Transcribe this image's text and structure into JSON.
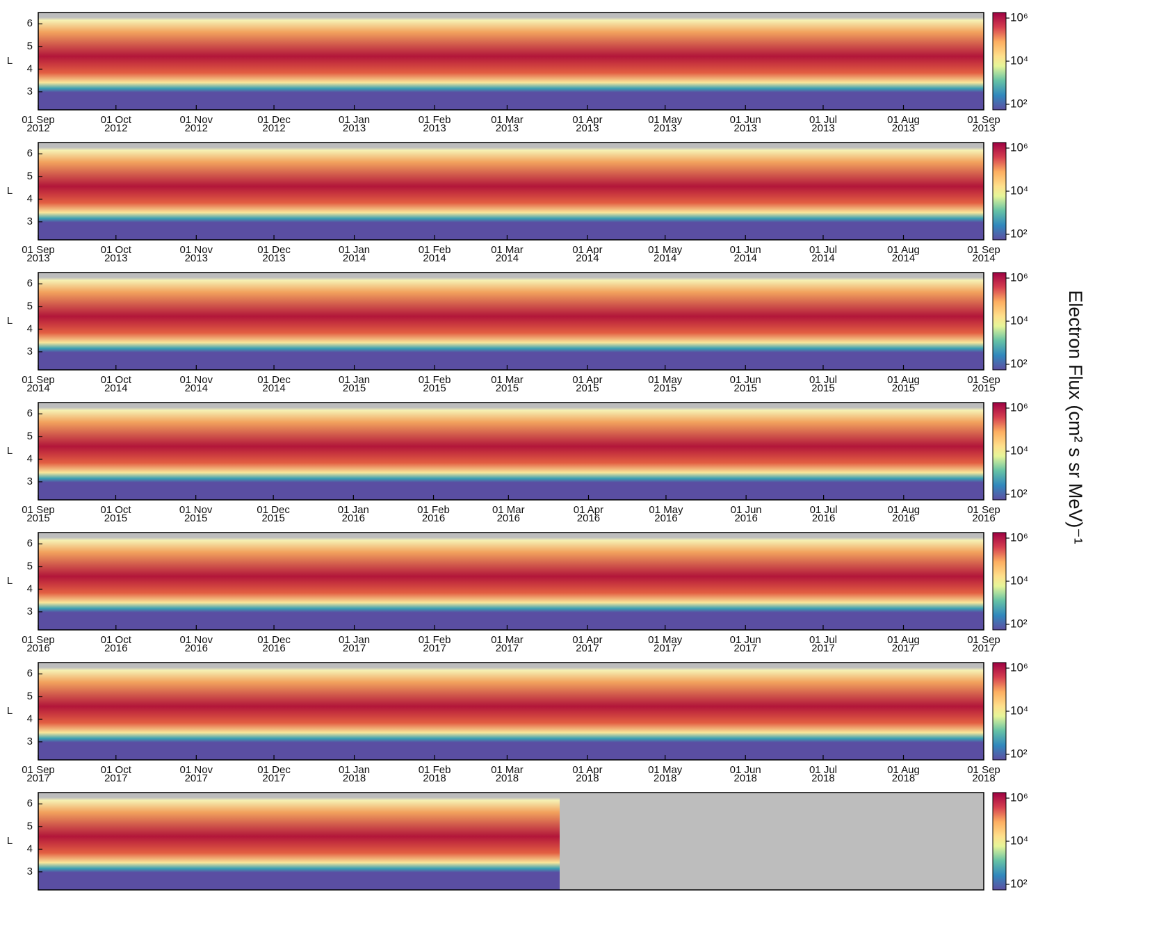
{
  "figure": {
    "colorbar_label": "Electron Flux (cm² s sr MeV)⁻¹"
  },
  "chart_data": [
    {
      "type": "heatmap",
      "ylabel": "L",
      "ylim": [
        2.2,
        6.5
      ],
      "yticks": [
        3,
        4,
        5,
        6
      ],
      "clim": [
        100,
        1000000
      ],
      "colorbar_log": true,
      "colorbar_ticks": [
        {
          "value": 100,
          "label": "10²"
        },
        {
          "value": 10000,
          "label": "10⁴"
        },
        {
          "value": 1000000,
          "label": "10⁶"
        }
      ],
      "xlim": [
        "2012-09-01",
        "2013-09-01"
      ],
      "xticks": [
        {
          "value": "2012-09-01",
          "label": [
            "01 Sep",
            "2012"
          ]
        },
        {
          "value": "2012-10-01",
          "label": [
            "01 Oct",
            "2012"
          ]
        },
        {
          "value": "2012-11-01",
          "label": [
            "01 Nov",
            "2012"
          ]
        },
        {
          "value": "2012-12-01",
          "label": [
            "01 Dec",
            "2012"
          ]
        },
        {
          "value": "2013-01-01",
          "label": [
            "01 Jan",
            "2013"
          ]
        },
        {
          "value": "2013-02-01",
          "label": [
            "01 Feb",
            "2013"
          ]
        },
        {
          "value": "2013-03-01",
          "label": [
            "01 Mar",
            "2013"
          ]
        },
        {
          "value": "2013-04-01",
          "label": [
            "01 Apr",
            "2013"
          ]
        },
        {
          "value": "2013-05-01",
          "label": [
            "01 May",
            "2013"
          ]
        },
        {
          "value": "2013-06-01",
          "label": [
            "01 Jun",
            "2013"
          ]
        },
        {
          "value": "2013-07-01",
          "label": [
            "01 Jul",
            "2013"
          ]
        },
        {
          "value": "2013-08-01",
          "label": [
            "01 Aug",
            "2013"
          ]
        },
        {
          "value": "2013-09-01",
          "label": [
            "01 Sep",
            "2013"
          ]
        }
      ]
    },
    {
      "type": "heatmap",
      "ylabel": "L",
      "ylim": [
        2.2,
        6.5
      ],
      "yticks": [
        3,
        4,
        5,
        6
      ],
      "clim": [
        100,
        1000000
      ],
      "colorbar_log": true,
      "colorbar_ticks": [
        {
          "value": 100,
          "label": "10²"
        },
        {
          "value": 10000,
          "label": "10⁴"
        },
        {
          "value": 1000000,
          "label": "10⁶"
        }
      ],
      "xlim": [
        "2013-09-01",
        "2014-09-01"
      ],
      "xticks": [
        {
          "value": "2013-09-01",
          "label": [
            "01 Sep",
            "2013"
          ]
        },
        {
          "value": "2013-10-01",
          "label": [
            "01 Oct",
            "2013"
          ]
        },
        {
          "value": "2013-11-01",
          "label": [
            "01 Nov",
            "2013"
          ]
        },
        {
          "value": "2013-12-01",
          "label": [
            "01 Dec",
            "2013"
          ]
        },
        {
          "value": "2014-01-01",
          "label": [
            "01 Jan",
            "2014"
          ]
        },
        {
          "value": "2014-02-01",
          "label": [
            "01 Feb",
            "2014"
          ]
        },
        {
          "value": "2014-03-01",
          "label": [
            "01 Mar",
            "2014"
          ]
        },
        {
          "value": "2014-04-01",
          "label": [
            "01 Apr",
            "2014"
          ]
        },
        {
          "value": "2014-05-01",
          "label": [
            "01 May",
            "2014"
          ]
        },
        {
          "value": "2014-06-01",
          "label": [
            "01 Jun",
            "2014"
          ]
        },
        {
          "value": "2014-07-01",
          "label": [
            "01 Jul",
            "2014"
          ]
        },
        {
          "value": "2014-08-01",
          "label": [
            "01 Aug",
            "2014"
          ]
        },
        {
          "value": "2014-09-01",
          "label": [
            "01 Sep",
            "2014"
          ]
        }
      ]
    },
    {
      "type": "heatmap",
      "ylabel": "L",
      "ylim": [
        2.2,
        6.5
      ],
      "yticks": [
        3,
        4,
        5,
        6
      ],
      "clim": [
        100,
        1000000
      ],
      "colorbar_log": true,
      "colorbar_ticks": [
        {
          "value": 100,
          "label": "10²"
        },
        {
          "value": 10000,
          "label": "10⁴"
        },
        {
          "value": 1000000,
          "label": "10⁶"
        }
      ],
      "xlim": [
        "2014-09-01",
        "2015-09-01"
      ],
      "xticks": [
        {
          "value": "2014-09-01",
          "label": [
            "01 Sep",
            "2014"
          ]
        },
        {
          "value": "2014-10-01",
          "label": [
            "01 Oct",
            "2014"
          ]
        },
        {
          "value": "2014-11-01",
          "label": [
            "01 Nov",
            "2014"
          ]
        },
        {
          "value": "2014-12-01",
          "label": [
            "01 Dec",
            "2014"
          ]
        },
        {
          "value": "2015-01-01",
          "label": [
            "01 Jan",
            "2015"
          ]
        },
        {
          "value": "2015-02-01",
          "label": [
            "01 Feb",
            "2015"
          ]
        },
        {
          "value": "2015-03-01",
          "label": [
            "01 Mar",
            "2015"
          ]
        },
        {
          "value": "2015-04-01",
          "label": [
            "01 Apr",
            "2015"
          ]
        },
        {
          "value": "2015-05-01",
          "label": [
            "01 May",
            "2015"
          ]
        },
        {
          "value": "2015-06-01",
          "label": [
            "01 Jun",
            "2015"
          ]
        },
        {
          "value": "2015-07-01",
          "label": [
            "01 Jul",
            "2015"
          ]
        },
        {
          "value": "2015-08-01",
          "label": [
            "01 Aug",
            "2015"
          ]
        },
        {
          "value": "2015-09-01",
          "label": [
            "01 Sep",
            "2015"
          ]
        }
      ]
    },
    {
      "type": "heatmap",
      "ylabel": "L",
      "ylim": [
        2.2,
        6.5
      ],
      "yticks": [
        3,
        4,
        5,
        6
      ],
      "clim": [
        100,
        1000000
      ],
      "colorbar_log": true,
      "colorbar_ticks": [
        {
          "value": 100,
          "label": "10²"
        },
        {
          "value": 10000,
          "label": "10⁴"
        },
        {
          "value": 1000000,
          "label": "10⁶"
        }
      ],
      "xlim": [
        "2015-09-01",
        "2016-09-01"
      ],
      "xticks": [
        {
          "value": "2015-09-01",
          "label": [
            "01 Sep",
            "2015"
          ]
        },
        {
          "value": "2015-10-01",
          "label": [
            "01 Oct",
            "2015"
          ]
        },
        {
          "value": "2015-11-01",
          "label": [
            "01 Nov",
            "2015"
          ]
        },
        {
          "value": "2015-12-01",
          "label": [
            "01 Dec",
            "2015"
          ]
        },
        {
          "value": "2016-01-01",
          "label": [
            "01 Jan",
            "2016"
          ]
        },
        {
          "value": "2016-02-01",
          "label": [
            "01 Feb",
            "2016"
          ]
        },
        {
          "value": "2016-03-01",
          "label": [
            "01 Mar",
            "2016"
          ]
        },
        {
          "value": "2016-04-01",
          "label": [
            "01 Apr",
            "2016"
          ]
        },
        {
          "value": "2016-05-01",
          "label": [
            "01 May",
            "2016"
          ]
        },
        {
          "value": "2016-06-01",
          "label": [
            "01 Jun",
            "2016"
          ]
        },
        {
          "value": "2016-07-01",
          "label": [
            "01 Jul",
            "2016"
          ]
        },
        {
          "value": "2016-08-01",
          "label": [
            "01 Aug",
            "2016"
          ]
        },
        {
          "value": "2016-09-01",
          "label": [
            "01 Sep",
            "2016"
          ]
        }
      ]
    },
    {
      "type": "heatmap",
      "ylabel": "L",
      "ylim": [
        2.2,
        6.5
      ],
      "yticks": [
        3,
        4,
        5,
        6
      ],
      "clim": [
        100,
        1000000
      ],
      "colorbar_log": true,
      "colorbar_ticks": [
        {
          "value": 100,
          "label": "10²"
        },
        {
          "value": 10000,
          "label": "10⁴"
        },
        {
          "value": 1000000,
          "label": "10⁶"
        }
      ],
      "xlim": [
        "2016-09-01",
        "2017-09-01"
      ],
      "xticks": [
        {
          "value": "2016-09-01",
          "label": [
            "01 Sep",
            "2016"
          ]
        },
        {
          "value": "2016-10-01",
          "label": [
            "01 Oct",
            "2016"
          ]
        },
        {
          "value": "2016-11-01",
          "label": [
            "01 Nov",
            "2016"
          ]
        },
        {
          "value": "2016-12-01",
          "label": [
            "01 Dec",
            "2016"
          ]
        },
        {
          "value": "2017-01-01",
          "label": [
            "01 Jan",
            "2017"
          ]
        },
        {
          "value": "2017-02-01",
          "label": [
            "01 Feb",
            "2017"
          ]
        },
        {
          "value": "2017-03-01",
          "label": [
            "01 Mar",
            "2017"
          ]
        },
        {
          "value": "2017-04-01",
          "label": [
            "01 Apr",
            "2017"
          ]
        },
        {
          "value": "2017-05-01",
          "label": [
            "01 May",
            "2017"
          ]
        },
        {
          "value": "2017-06-01",
          "label": [
            "01 Jun",
            "2017"
          ]
        },
        {
          "value": "2017-07-01",
          "label": [
            "01 Jul",
            "2017"
          ]
        },
        {
          "value": "2017-08-01",
          "label": [
            "01 Aug",
            "2017"
          ]
        },
        {
          "value": "2017-09-01",
          "label": [
            "01 Sep",
            "2017"
          ]
        }
      ]
    },
    {
      "type": "heatmap",
      "ylabel": "L",
      "ylim": [
        2.2,
        6.5
      ],
      "yticks": [
        3,
        4,
        5,
        6
      ],
      "clim": [
        100,
        1000000
      ],
      "colorbar_log": true,
      "colorbar_ticks": [
        {
          "value": 100,
          "label": "10²"
        },
        {
          "value": 10000,
          "label": "10⁴"
        },
        {
          "value": 1000000,
          "label": "10⁶"
        }
      ],
      "xlim": [
        "2017-09-01",
        "2018-09-01"
      ],
      "xticks": [
        {
          "value": "2017-09-01",
          "label": [
            "01 Sep",
            "2017"
          ]
        },
        {
          "value": "2017-10-01",
          "label": [
            "01 Oct",
            "2017"
          ]
        },
        {
          "value": "2017-11-01",
          "label": [
            "01 Nov",
            "2017"
          ]
        },
        {
          "value": "2017-12-01",
          "label": [
            "01 Dec",
            "2017"
          ]
        },
        {
          "value": "2018-01-01",
          "label": [
            "01 Jan",
            "2018"
          ]
        },
        {
          "value": "2018-02-01",
          "label": [
            "01 Feb",
            "2018"
          ]
        },
        {
          "value": "2018-03-01",
          "label": [
            "01 Mar",
            "2018"
          ]
        },
        {
          "value": "2018-04-01",
          "label": [
            "01 Apr",
            "2018"
          ]
        },
        {
          "value": "2018-05-01",
          "label": [
            "01 May",
            "2018"
          ]
        },
        {
          "value": "2018-06-01",
          "label": [
            "01 Jun",
            "2018"
          ]
        },
        {
          "value": "2018-07-01",
          "label": [
            "01 Jul",
            "2018"
          ]
        },
        {
          "value": "2018-08-01",
          "label": [
            "01 Aug",
            "2018"
          ]
        },
        {
          "value": "2018-09-01",
          "label": [
            "01 Sep",
            "2018"
          ]
        }
      ]
    },
    {
      "type": "heatmap",
      "ylabel": "L",
      "ylim": [
        2.2,
        6.5
      ],
      "yticks": [
        3,
        4,
        5,
        6
      ],
      "clim": [
        100,
        1000000
      ],
      "colorbar_log": true,
      "colorbar_ticks": [
        {
          "value": 100,
          "label": "10²"
        },
        {
          "value": 10000,
          "label": "10⁴"
        },
        {
          "value": 1000000,
          "label": "10⁶"
        }
      ]
    }
  ]
}
